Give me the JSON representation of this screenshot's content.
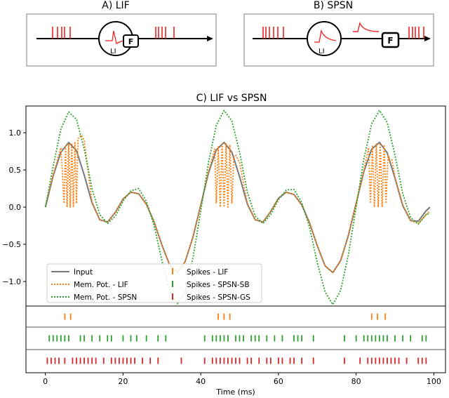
{
  "panels": {
    "a_title": "A) LIF",
    "b_title": "B) SPSN",
    "a_neuron_label": "LI",
    "a_box_label": "F",
    "b_neuron_label": "LI",
    "b_box_label": "F"
  },
  "colors": {
    "input": "#777777",
    "lif": "#ff7f0e",
    "spsn": "#2ca02c",
    "spsn_gs": "#d62728",
    "spike_red": "#ee2222"
  },
  "chart_data": {
    "type": "line",
    "title": "C) LIF vs SPSN",
    "xlabel": "Time (ms)",
    "ylabel": "",
    "xlim": [
      -5,
      103
    ],
    "ylim": [
      -1.33,
      1.36
    ],
    "xticks": [
      "0",
      "20",
      "40",
      "60",
      "80",
      "100"
    ],
    "yticks": [
      "1.0",
      "0.5",
      "0.0",
      "−0.5",
      "−1.0"
    ],
    "legend_position": "lower-left",
    "legend": [
      "Input",
      "Mem. Pot. - LIF",
      "Mem. Pot. - SPSN",
      "Spikes - LIF",
      "Spikes - SPSN-SB",
      "Spikes - SPSN-GS"
    ],
    "series": [
      {
        "name": "Input",
        "x": [
          0,
          2,
          4,
          6,
          8,
          10,
          12,
          14,
          16,
          18,
          20,
          22,
          24,
          26,
          28,
          30,
          32,
          34,
          36,
          38,
          40,
          42,
          44,
          46,
          48,
          50,
          52,
          54,
          56,
          58,
          60,
          62,
          64,
          66,
          68,
          70,
          72,
          74,
          76,
          78,
          80,
          82,
          84,
          86,
          88,
          90,
          92,
          94,
          96,
          98,
          99
        ],
        "y": [
          0.0,
          0.42,
          0.74,
          0.87,
          0.76,
          0.43,
          0.06,
          -0.17,
          -0.2,
          -0.07,
          0.11,
          0.2,
          0.18,
          0.04,
          -0.2,
          -0.51,
          -0.78,
          -0.88,
          -0.73,
          -0.4,
          0.03,
          0.46,
          0.77,
          0.87,
          0.74,
          0.41,
          0.04,
          -0.17,
          -0.2,
          -0.06,
          0.12,
          0.2,
          0.17,
          0.03,
          -0.21,
          -0.52,
          -0.79,
          -0.88,
          -0.72,
          -0.38,
          0.05,
          0.48,
          0.78,
          0.87,
          0.73,
          0.39,
          0.02,
          -0.18,
          -0.19,
          -0.05,
          0.0
        ]
      },
      {
        "name": "Mem. Pot. - LIF",
        "x": [
          0,
          2,
          4,
          4.8,
          5.2,
          5.6,
          6.0,
          6.4,
          6.8,
          7.2,
          7.6,
          8.0,
          8.4,
          9.2,
          10,
          12,
          14,
          16,
          18,
          20,
          22,
          24,
          26,
          28,
          30,
          32,
          34,
          36,
          38,
          40,
          42,
          43.6,
          44,
          44.5,
          45,
          45.5,
          46,
          46.5,
          47,
          47.5,
          48,
          48.5,
          49,
          50,
          52,
          54,
          56,
          58,
          60,
          62,
          64,
          66,
          68,
          70,
          72,
          74,
          76,
          78,
          80,
          82,
          83.2,
          83.7,
          84.2,
          84.7,
          85.2,
          85.7,
          86.2,
          86.7,
          87.2,
          87.7,
          88.2,
          88.7,
          89.2,
          90,
          92,
          94,
          96,
          98,
          99
        ],
        "y": [
          0.0,
          0.44,
          0.8,
          0.05,
          0.82,
          0.0,
          0.85,
          0.0,
          0.86,
          0.0,
          0.88,
          0.05,
          0.92,
          0.97,
          0.9,
          0.07,
          -0.17,
          -0.2,
          -0.07,
          0.11,
          0.2,
          0.18,
          0.04,
          -0.2,
          -0.51,
          -0.78,
          -0.88,
          -0.73,
          -0.4,
          0.03,
          0.48,
          0.78,
          0.05,
          0.82,
          0.0,
          0.85,
          0.0,
          0.86,
          0.0,
          0.84,
          0.05,
          0.68,
          0.7,
          0.6,
          0.05,
          -0.17,
          -0.2,
          -0.06,
          0.12,
          0.2,
          0.17,
          0.03,
          -0.21,
          -0.52,
          -0.79,
          -0.88,
          -0.72,
          -0.38,
          0.05,
          0.5,
          0.8,
          0.05,
          0.82,
          0.0,
          0.85,
          0.0,
          0.86,
          0.0,
          0.84,
          0.05,
          0.7,
          0.62,
          0.64,
          0.4,
          0.03,
          -0.18,
          -0.22,
          -0.1,
          -0.05
        ]
      },
      {
        "name": "Mem. Pot. - SPSN",
        "x": [
          0,
          2,
          4,
          6,
          8,
          10,
          12,
          14,
          16,
          18,
          20,
          22,
          24,
          26,
          28,
          30,
          32,
          34,
          36,
          38,
          40,
          42,
          44,
          46,
          48,
          50,
          52,
          54,
          56,
          58,
          60,
          62,
          64,
          66,
          68,
          70,
          72,
          74,
          76,
          78,
          80,
          82,
          84,
          86,
          88,
          90,
          92,
          94,
          96,
          98,
          99
        ],
        "y": [
          0.0,
          0.55,
          1.05,
          1.28,
          1.18,
          0.78,
          0.25,
          -0.1,
          -0.22,
          -0.12,
          0.08,
          0.22,
          0.25,
          0.08,
          -0.25,
          -0.72,
          -1.12,
          -1.3,
          -1.14,
          -0.68,
          -0.05,
          0.6,
          1.1,
          1.3,
          1.16,
          0.74,
          0.2,
          -0.12,
          -0.22,
          -0.1,
          0.1,
          0.23,
          0.24,
          0.06,
          -0.27,
          -0.75,
          -1.14,
          -1.31,
          -1.12,
          -0.64,
          0.0,
          0.65,
          1.12,
          1.3,
          1.14,
          0.7,
          0.18,
          -0.14,
          -0.23,
          -0.1,
          -0.08
        ]
      }
    ],
    "raster_rows": [
      {
        "name": "Spikes - LIF",
        "color": "#ff7f0e",
        "times": [
          5.0,
          6.5,
          44.5,
          46.0,
          47.5,
          84.0,
          85.5,
          87.5
        ]
      },
      {
        "name": "Spikes - SPSN-SB",
        "color": "#2ca02c",
        "times": [
          1.0,
          2.0,
          3.0,
          4.0,
          5.0,
          6.0,
          9.0,
          10.0,
          12.0,
          14.0,
          16.0,
          17.0,
          20.0,
          22.0,
          23.5,
          26.0,
          29.0,
          31.0,
          41.0,
          43.0,
          44.0,
          45.0,
          46.0,
          47.0,
          49.0,
          50.0,
          51.0,
          53.0,
          54.0,
          55.0,
          57.0,
          59.0,
          61.0,
          64.0,
          65.0,
          66.0,
          69.0,
          77.0,
          80.0,
          82.0,
          83.0,
          84.0,
          85.0,
          86.0,
          87.0,
          88.0,
          90.0,
          92.0,
          94.0,
          97.0,
          98.0
        ]
      },
      {
        "name": "Spikes - SPSN-GS",
        "color": "#d62728",
        "times": [
          0.5,
          1.5,
          2.5,
          3.5,
          5.0,
          7.0,
          8.0,
          9.0,
          10.0,
          11.0,
          12.0,
          13.0,
          15.0,
          17.0,
          18.0,
          19.0,
          20.0,
          21.0,
          22.0,
          23.0,
          25.0,
          27.0,
          29.0,
          35.0,
          41.0,
          43.0,
          44.0,
          45.0,
          46.0,
          47.0,
          48.0,
          49.0,
          50.0,
          52.0,
          53.0,
          55.0,
          57.0,
          58.0,
          60.0,
          61.0,
          63.0,
          64.0,
          66.0,
          69.0,
          77.0,
          81.0,
          83.0,
          84.0,
          85.0,
          86.0,
          87.0,
          88.0,
          89.0,
          90.0,
          91.0,
          93.0,
          96.0,
          97.0,
          98.0
        ]
      }
    ]
  }
}
